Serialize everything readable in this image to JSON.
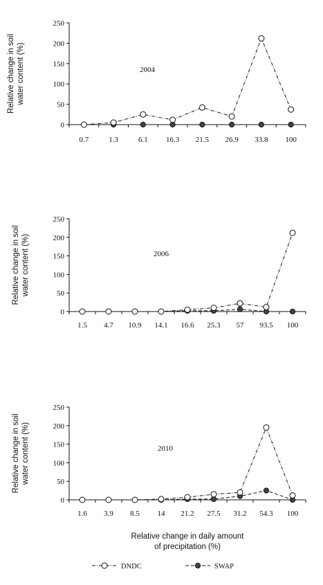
{
  "chart_data": [
    {
      "type": "line",
      "annotation": "2004",
      "ylabel": [
        "Relative change in soil",
        "water content (%)"
      ],
      "categories": [
        "0.7",
        "1.3",
        "6.1",
        "16.3",
        "21.5",
        "26.9",
        "33.8",
        "100"
      ],
      "ylim": [
        0,
        250
      ],
      "yticks": [
        "0",
        "50",
        "100",
        "150",
        "200",
        "250"
      ],
      "series": [
        {
          "name": "DNDC",
          "values": [
            0,
            5,
            25,
            12,
            42,
            20,
            212,
            37
          ]
        },
        {
          "name": "SWAP",
          "values": [
            0,
            0,
            0,
            0,
            0,
            0,
            0,
            0
          ]
        }
      ]
    },
    {
      "type": "line",
      "annotation": "2006",
      "ylabel": [
        "Relative change in soil",
        "water content (%)"
      ],
      "categories": [
        "1.5",
        "4.7",
        "10.9",
        "14.1",
        "16.6",
        "25.3",
        "57",
        "93.5",
        "100"
      ],
      "ylim": [
        0,
        250
      ],
      "yticks": [
        "0",
        "50",
        "100",
        "150",
        "200",
        "250"
      ],
      "series": [
        {
          "name": "DNDC",
          "values": [
            0,
            0,
            0,
            0,
            5,
            10,
            22,
            12,
            212
          ]
        },
        {
          "name": "SWAP",
          "values": [
            0,
            0,
            0,
            0,
            2,
            2,
            6,
            0,
            0
          ]
        }
      ]
    },
    {
      "type": "line",
      "annotation": "2010",
      "ylabel": [
        "Relative change in soil",
        "water content (%)"
      ],
      "categories": [
        "1.6",
        "3.9",
        "8.5",
        "14",
        "21.2",
        "27.5",
        "31.2",
        "54.3",
        "100"
      ],
      "ylim": [
        0,
        250
      ],
      "yticks": [
        "0",
        "50",
        "100",
        "150",
        "200",
        "250"
      ],
      "xlabel": [
        "Relative change in daily amount",
        "of precipitation (%)"
      ],
      "series": [
        {
          "name": "DNDC",
          "values": [
            0,
            0,
            0,
            2,
            7,
            15,
            20,
            195,
            12
          ]
        },
        {
          "name": "SWAP",
          "values": [
            0,
            0,
            0,
            0,
            2,
            2,
            10,
            25,
            0
          ]
        }
      ]
    }
  ],
  "legend": [
    {
      "label": "DNDC",
      "marker": "open-circle",
      "line": "dash-dot"
    },
    {
      "label": "SWAP",
      "marker": "filled-circle",
      "line": "dashed"
    }
  ],
  "colors": {
    "line": "#111111",
    "filled_marker": "#444444",
    "open_marker_fill": "#ffffff"
  }
}
